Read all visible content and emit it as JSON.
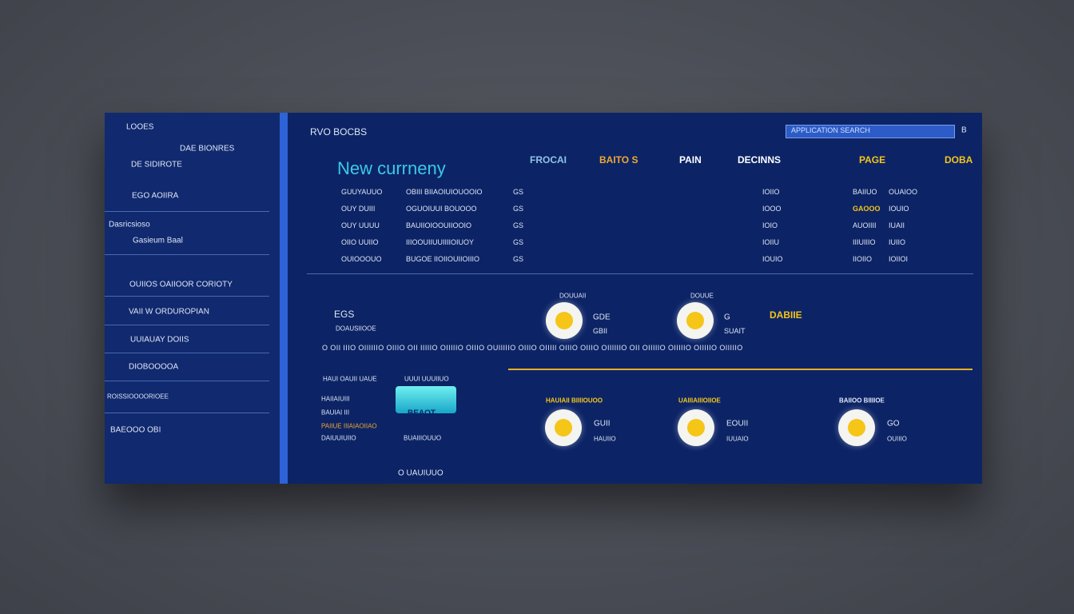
{
  "header": {
    "title": "RVO BOCBS",
    "search": "APPLICATION SEARCH",
    "icon": "B"
  },
  "sidebar": {
    "items": [
      "LOOES",
      "DAE BIONRES",
      "DE SIDIROTE",
      "EGO AOIIRA",
      "Dasricsioso",
      "Gasieum Baal",
      "OUIIOS OAIIOOR CORIOTY",
      "VAII W ORDUROPIAN",
      "UUIAUAY DOIIS",
      "DIOBOOOOA",
      "ROISSIOOOORIOEE",
      "BAEOOO OBI"
    ]
  },
  "main": {
    "heading": "New currneny",
    "columns": [
      "FROCAI",
      "BAITO S",
      "PAIN",
      "DECINNS",
      "PAGE",
      "DOBA"
    ],
    "rows": [
      [
        "GUUYAUUO",
        "OBIII BIIAOIUIOUOOIO",
        "GS",
        "IOIIO",
        "BAIIUO",
        "OUAIOO"
      ],
      [
        "OUY DUIII",
        "OGUOIUUI BOUOOO",
        "GS",
        "IOOO",
        "GAOOO",
        "IOUIO"
      ],
      [
        "OUY UUUU",
        "BAUIIOIOOUIIOOIO",
        "GS",
        "IOIO",
        "AUOIIII",
        "IUAII"
      ],
      [
        "OIIO UUIIO",
        "IIIOOUIIUUIIIIOIUOY",
        "GS",
        "IOIIU",
        "IIIUIIIO",
        "IUIIO"
      ],
      [
        "OUIOOOUO",
        "BUGOE IIOIIOUIIOIIIO",
        "GS",
        "IOUIO",
        "IIOIIO",
        "IOIIOI"
      ]
    ],
    "stats": {
      "label": "EGS",
      "sub": "DOAUSIIOOE",
      "ticker": "O OII IIIO OIIIIIIO OIIIO OII IIIIIO OIIIIIO OIIIO OUIIIIIO OIIIO OIIIII OIIIO OIIIO OIIIIIIO OII OIIIIIO OIIIIIO OIIIIIO OIIIIIO"
    },
    "coins": [
      {
        "top": "DOUUAII",
        "a": "GDE",
        "b": "GBII"
      },
      {
        "top": "DOUUE",
        "a": "G",
        "b": "SUAIT"
      }
    ],
    "highlight": "DABIIE",
    "left": {
      "a": "HAUI OAUII UAUE",
      "b": "UUUI UUUIIUO",
      "c": "HAIIAIUIII",
      "d": "BAUIAI III",
      "e": "PAIIUE IIIAIAOIIAO",
      "f": "DAIUUIUIIO",
      "g": "BUAIIIOUUO",
      "badge": "BEAOT",
      "foot": "O UAUIUUO"
    },
    "cards": [
      {
        "title": "HAUIAII BIIIIOUOO",
        "a": "GUII",
        "b": "HAUIIO"
      },
      {
        "title": "UAIIIAIIIOIIOE",
        "a": "EOUII",
        "b": "IUUAIO"
      },
      {
        "title": "BAIIOO BIIIIOE",
        "a": "GO",
        "b": "OUIIIO"
      }
    ]
  }
}
